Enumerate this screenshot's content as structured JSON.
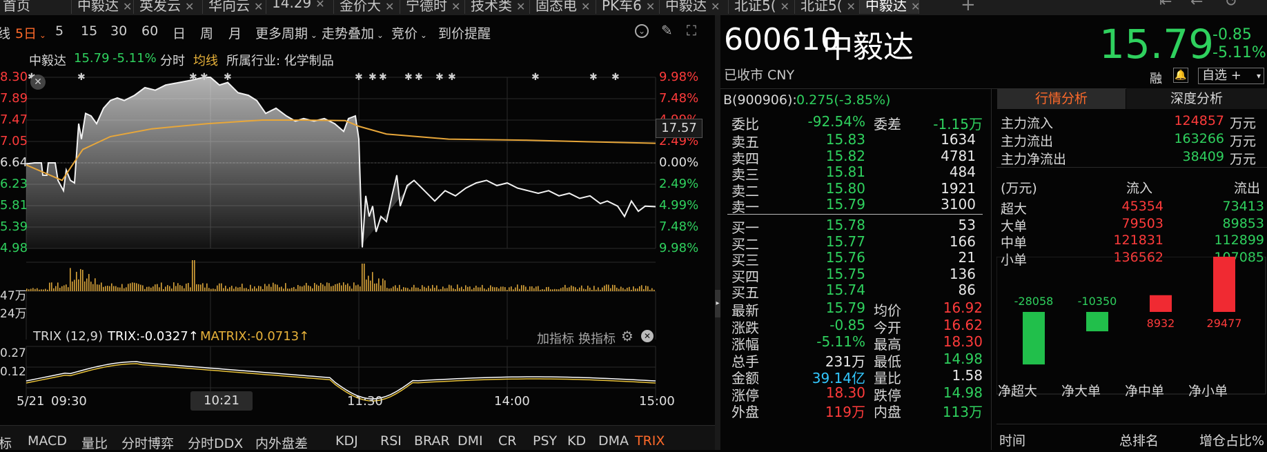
{
  "tabs": [
    {
      "label": "首页",
      "close": false
    },
    {
      "label": "中毅达",
      "close": true
    },
    {
      "label": "英发云",
      "close": true
    },
    {
      "label": "华向云",
      "close": true
    },
    {
      "label": "14.29",
      "close": true
    },
    {
      "label": "金价大",
      "close": true
    },
    {
      "label": "宁德时",
      "close": true
    },
    {
      "label": "技术类",
      "close": true
    },
    {
      "label": "固态电",
      "close": true
    },
    {
      "label": "PK车6",
      "close": true
    },
    {
      "label": "中毅达",
      "close": true
    },
    {
      "label": "北证5(",
      "close": true
    },
    {
      "label": "北证5(",
      "close": true
    },
    {
      "label": "中毅达",
      "close": true,
      "active": true
    }
  ],
  "toolbar": {
    "period_left": "线",
    "period_5d": "5日",
    "p5": "5",
    "p15": "15",
    "p30": "30",
    "p60": "60",
    "day": "日",
    "week": "周",
    "month": "月",
    "more": "更多周期",
    "overlay": "走势叠加",
    "bid": "竞价",
    "alert": "到价提醒"
  },
  "info": {
    "name": "中毅达",
    "price": "15.79",
    "pct": "-5.11%",
    "mode": "分时",
    "avg": "均线",
    "industry": "所属行业: 化学制品"
  },
  "axis": {
    "left": [
      "8.30",
      "7.89",
      "7.47",
      "7.05",
      "6.64",
      "6.23",
      "5.81",
      "5.39",
      "4.98"
    ],
    "right": [
      "9.98%",
      "7.48%",
      "4.99%",
      "2.49%",
      "0.00%",
      "2.49%",
      "4.99%",
      "7.48%",
      "9.98%"
    ],
    "hover_price": "17.57",
    "vol": [
      "47万",
      "24万"
    ],
    "trix": [
      "0.27",
      "0.12"
    ],
    "time": [
      "5/21",
      "09:30",
      "10:21",
      "11:30",
      "14:00",
      "15:00"
    ]
  },
  "trix": {
    "name": "TRIX (12,9)",
    "trix": "TRIX:-0.0327",
    "matrix": "MATRIX:-0.0713",
    "add": "加指标",
    "switch": "换指标"
  },
  "indicator_tabs": [
    "标",
    "MACD",
    "量比",
    "分时博弈",
    "分时DDX",
    "内外盘差",
    "KDJ",
    "RSI",
    "BRAR",
    "DMI",
    "CR",
    "PSY",
    "KD",
    "DMA",
    "TRIX"
  ],
  "stock": {
    "code": "600610",
    "name": "中毅达",
    "status": "已收市 CNY",
    "price": "15.79",
    "change": "-0.85",
    "pct": "-5.11%",
    "rong": "融",
    "zixuan": "自选 +",
    "bshare": "B(900906):",
    "bvalue": "0.275(-3.85%)"
  },
  "order": {
    "wb_label": "委比",
    "wb": "-92.54%",
    "wc_label": "委差",
    "wc": "-1.15万",
    "sells": [
      {
        "l": "卖五",
        "p": "15.83",
        "v": "1634"
      },
      {
        "l": "卖四",
        "p": "15.82",
        "v": "4781"
      },
      {
        "l": "卖三",
        "p": "15.81",
        "v": "484"
      },
      {
        "l": "卖二",
        "p": "15.80",
        "v": "1921"
      },
      {
        "l": "卖一",
        "p": "15.79",
        "v": "3100"
      }
    ],
    "buys": [
      {
        "l": "买一",
        "p": "15.78",
        "v": "53"
      },
      {
        "l": "买二",
        "p": "15.77",
        "v": "166"
      },
      {
        "l": "买三",
        "p": "15.76",
        "v": "21"
      },
      {
        "l": "买四",
        "p": "15.75",
        "v": "136"
      },
      {
        "l": "买五",
        "p": "15.74",
        "v": "86"
      }
    ]
  },
  "stats": [
    {
      "l1": "最新",
      "v1": "15.79",
      "c1": "green",
      "l2": "均价",
      "v2": "16.92",
      "c2": "red"
    },
    {
      "l1": "涨跌",
      "v1": "-0.85",
      "c1": "green",
      "l2": "今开",
      "v2": "16.62",
      "c2": "red"
    },
    {
      "l1": "涨幅",
      "v1": "-5.11%",
      "c1": "green",
      "l2": "最高",
      "v2": "18.30",
      "c2": "red"
    },
    {
      "l1": "总手",
      "v1": "231万",
      "c1": "white",
      "l2": "最低",
      "v2": "14.98",
      "c2": "green"
    },
    {
      "l1": "金额",
      "v1": "39.14亿",
      "c1": "cyan",
      "l2": "量比",
      "v2": "1.58",
      "c2": "white"
    },
    {
      "l1": "涨停",
      "v1": "18.30",
      "c1": "red",
      "l2": "跌停",
      "v2": "14.98",
      "c2": "green"
    },
    {
      "l1": "外盘",
      "v1": "119万",
      "c1": "red",
      "l2": "内盘",
      "v2": "113万",
      "c2": "green"
    }
  ],
  "analysis": {
    "tab1": "行情分析",
    "tab2": "深度分析",
    "flows": [
      {
        "l": "主力流入",
        "v": "124857",
        "c": "red",
        "u": "万元"
      },
      {
        "l": "主力流出",
        "v": "163266",
        "c": "green",
        "u": "万元"
      },
      {
        "l": "主力净流出",
        "v": "38409",
        "c": "green",
        "u": "万元"
      }
    ],
    "hdr": {
      "unit": "(万元)",
      "in": "流入",
      "out": "流出"
    },
    "rows": [
      {
        "l": "超大",
        "in": "45354",
        "out": "73413"
      },
      {
        "l": "大单",
        "in": "79503",
        "out": "89853"
      },
      {
        "l": "中单",
        "in": "121831",
        "out": "112899"
      },
      {
        "l": "小单",
        "in": "136562",
        "out": "107085"
      }
    ],
    "net_labels": [
      "净超大",
      "净大单",
      "净中单",
      "净小单"
    ],
    "footer": {
      "time": "时间",
      "rank": "总排名",
      "ratio": "增仓占比%"
    }
  },
  "chart_data": {
    "type": "bar",
    "title": "",
    "categories": [
      "净超大",
      "净大单",
      "净中单",
      "净小单"
    ],
    "values": [
      -28058,
      -10350,
      8932,
      29477
    ]
  }
}
